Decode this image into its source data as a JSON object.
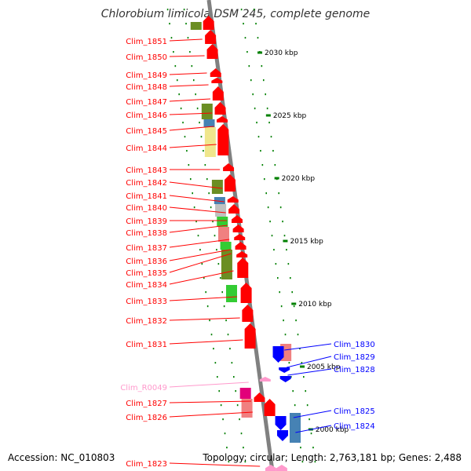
{
  "title": "Chlorobium limicola DSM 245, complete genome",
  "accession": "Accession: NC_010803",
  "summary": "Topology: circular; Length: 2,763,181 bp; Genes: 2,488",
  "colors": {
    "forward": "#ff0000",
    "rna": "#ff99cc",
    "reverse": "#0000ff",
    "backbone": "#808080",
    "ruler_tick": "#008000",
    "cog_olive": "#6b8e23",
    "cog_steelblue": "#4682b4",
    "cog_khaki": "#f0e68c",
    "cog_silver": "#c0c0c0",
    "cog_green": "#33cc33",
    "cog_lightred": "#f08080",
    "cog_magenta": "#e2007a"
  },
  "ruler": [
    {
      "label": "2030 kbp"
    },
    {
      "label": "2025 kbp"
    },
    {
      "label": "2020 kbp"
    },
    {
      "label": "2015 kbp"
    },
    {
      "label": "2010 kbp"
    },
    {
      "label": "2005 kbp"
    },
    {
      "label": "2000 kbp"
    }
  ],
  "genes_left": [
    {
      "label": "Clim_1851",
      "type": "forward"
    },
    {
      "label": "Clim_1850",
      "type": "forward"
    },
    {
      "label": "Clim_1849",
      "type": "forward"
    },
    {
      "label": "Clim_1848",
      "type": "forward"
    },
    {
      "label": "Clim_1847",
      "type": "forward"
    },
    {
      "label": "Clim_1846",
      "type": "forward"
    },
    {
      "label": "Clim_1845",
      "type": "forward"
    },
    {
      "label": "Clim_1844",
      "type": "forward"
    },
    {
      "label": "Clim_1843",
      "type": "forward"
    },
    {
      "label": "Clim_1842",
      "type": "forward"
    },
    {
      "label": "Clim_1841",
      "type": "forward"
    },
    {
      "label": "Clim_1840",
      "type": "forward"
    },
    {
      "label": "Clim_1839",
      "type": "forward"
    },
    {
      "label": "Clim_1838",
      "type": "forward"
    },
    {
      "label": "Clim_1837",
      "type": "forward"
    },
    {
      "label": "Clim_1836",
      "type": "forward"
    },
    {
      "label": "Clim_1835",
      "type": "forward"
    },
    {
      "label": "Clim_1834",
      "type": "forward"
    },
    {
      "label": "Clim_1833",
      "type": "forward"
    },
    {
      "label": "Clim_1832",
      "type": "forward"
    },
    {
      "label": "Clim_1831",
      "type": "forward"
    },
    {
      "label": "Clim_R0049",
      "type": "rna"
    },
    {
      "label": "Clim_1827",
      "type": "forward"
    },
    {
      "label": "Clim_1826",
      "type": "forward"
    },
    {
      "label": "Clim_1823",
      "type": "forward"
    }
  ],
  "genes_right": [
    {
      "label": "Clim_1830",
      "type": "reverse"
    },
    {
      "label": "Clim_1829",
      "type": "reverse"
    },
    {
      "label": "Clim_1828",
      "type": "reverse"
    },
    {
      "label": "Clim_1825",
      "type": "reverse"
    },
    {
      "label": "Clim_1824",
      "type": "reverse"
    }
  ]
}
